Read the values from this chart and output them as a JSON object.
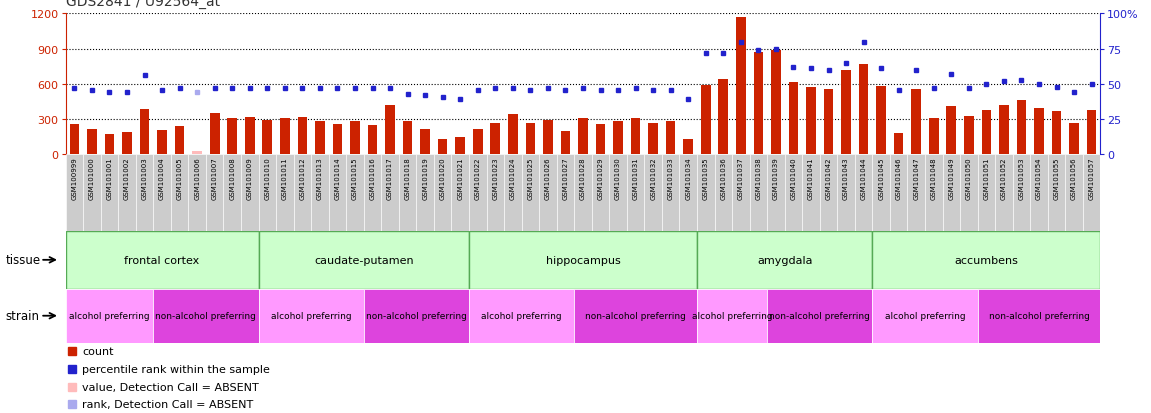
{
  "title": "GDS2841 / U92564_at",
  "samples": [
    "GSM100999",
    "GSM101000",
    "GSM101001",
    "GSM101002",
    "GSM101003",
    "GSM101004",
    "GSM101005",
    "GSM101006",
    "GSM101007",
    "GSM101008",
    "GSM101009",
    "GSM101010",
    "GSM101011",
    "GSM101012",
    "GSM101013",
    "GSM101014",
    "GSM101015",
    "GSM101016",
    "GSM101017",
    "GSM101018",
    "GSM101019",
    "GSM101020",
    "GSM101021",
    "GSM101022",
    "GSM101023",
    "GSM101024",
    "GSM101025",
    "GSM101026",
    "GSM101027",
    "GSM101028",
    "GSM101029",
    "GSM101030",
    "GSM101031",
    "GSM101032",
    "GSM101033",
    "GSM101034",
    "GSM101035",
    "GSM101036",
    "GSM101037",
    "GSM101038",
    "GSM101039",
    "GSM101040",
    "GSM101041",
    "GSM101042",
    "GSM101043",
    "GSM101044",
    "GSM101045",
    "GSM101046",
    "GSM101047",
    "GSM101048",
    "GSM101049",
    "GSM101050",
    "GSM101051",
    "GSM101052",
    "GSM101053",
    "GSM101054",
    "GSM101055",
    "GSM101056",
    "GSM101057"
  ],
  "counts": [
    260,
    215,
    175,
    190,
    390,
    210,
    240,
    25,
    350,
    310,
    315,
    295,
    310,
    320,
    285,
    255,
    285,
    250,
    420,
    285,
    215,
    130,
    145,
    215,
    270,
    340,
    265,
    295,
    200,
    305,
    255,
    280,
    310,
    265,
    280,
    130,
    590,
    640,
    1170,
    870,
    890,
    620,
    575,
    560,
    720,
    770,
    580,
    180,
    555,
    310,
    415,
    330,
    375,
    420,
    460,
    395,
    370,
    265,
    375
  ],
  "absent_flags": [
    false,
    false,
    false,
    false,
    false,
    false,
    false,
    true,
    false,
    false,
    false,
    false,
    false,
    false,
    false,
    false,
    false,
    false,
    false,
    false,
    false,
    false,
    false,
    false,
    false,
    false,
    false,
    false,
    false,
    false,
    false,
    false,
    false,
    false,
    false,
    false,
    false,
    false,
    false,
    false,
    false,
    false,
    false,
    false,
    false,
    false,
    false,
    false,
    false,
    false,
    false,
    false,
    false,
    false,
    false,
    false,
    false,
    false,
    false
  ],
  "percentile_ranks": [
    47,
    46,
    44,
    44,
    56,
    46,
    47,
    44,
    47,
    47,
    47,
    47,
    47,
    47,
    47,
    47,
    47,
    47,
    47,
    43,
    42,
    41,
    39,
    46,
    47,
    47,
    46,
    47,
    46,
    47,
    46,
    46,
    47,
    46,
    46,
    39,
    72,
    72,
    80,
    74,
    75,
    62,
    61,
    60,
    65,
    80,
    61,
    46,
    60,
    47,
    57,
    47,
    50,
    52,
    53,
    50,
    48,
    44,
    50
  ],
  "absent_rank_flags": [
    false,
    false,
    false,
    false,
    false,
    false,
    false,
    true,
    false,
    false,
    false,
    false,
    false,
    false,
    false,
    false,
    false,
    false,
    false,
    false,
    false,
    false,
    false,
    false,
    false,
    false,
    false,
    false,
    false,
    false,
    false,
    false,
    false,
    false,
    false,
    false,
    false,
    false,
    false,
    false,
    false,
    false,
    false,
    false,
    false,
    false,
    false,
    false,
    false,
    false,
    false,
    false,
    false,
    false,
    false,
    false,
    false,
    false,
    false
  ],
  "tissues": [
    {
      "name": "frontal cortex",
      "start": 0,
      "end": 10
    },
    {
      "name": "caudate-putamen",
      "start": 11,
      "end": 22
    },
    {
      "name": "hippocampus",
      "start": 23,
      "end": 35
    },
    {
      "name": "amygdala",
      "start": 36,
      "end": 45
    },
    {
      "name": "accumbens",
      "start": 46,
      "end": 58
    }
  ],
  "strains": [
    {
      "name": "alcohol preferring",
      "start": 0,
      "end": 4,
      "dark": false
    },
    {
      "name": "non-alcohol preferring",
      "start": 5,
      "end": 10,
      "dark": true
    },
    {
      "name": "alcohol preferring",
      "start": 11,
      "end": 16,
      "dark": false
    },
    {
      "name": "non-alcohol preferring",
      "start": 17,
      "end": 22,
      "dark": true
    },
    {
      "name": "alcohol preferring",
      "start": 23,
      "end": 28,
      "dark": false
    },
    {
      "name": "non-alcohol preferring",
      "start": 29,
      "end": 35,
      "dark": true
    },
    {
      "name": "alcohol preferring",
      "start": 36,
      "end": 39,
      "dark": false
    },
    {
      "name": "non-alcohol preferring",
      "start": 40,
      "end": 45,
      "dark": true
    },
    {
      "name": "alcohol preferring",
      "start": 46,
      "end": 51,
      "dark": false
    },
    {
      "name": "non-alcohol preferring",
      "start": 52,
      "end": 58,
      "dark": true
    }
  ],
  "ylim_left": [
    0,
    1200
  ],
  "ylim_right": [
    0,
    100
  ],
  "yticks_left": [
    0,
    300,
    600,
    900,
    1200
  ],
  "yticks_right": [
    0,
    25,
    50,
    75,
    100
  ],
  "bar_color": "#cc2200",
  "absent_bar_color": "#ffbbbb",
  "dot_color": "#2222cc",
  "absent_dot_color": "#aaaaee",
  "tissue_color_light": "#ccffcc",
  "tissue_color_dark": "#66cc66",
  "strain_light": "#ff99ff",
  "strain_dark": "#dd44dd",
  "left_axis_color": "#cc2200",
  "right_axis_color": "#2222cc"
}
